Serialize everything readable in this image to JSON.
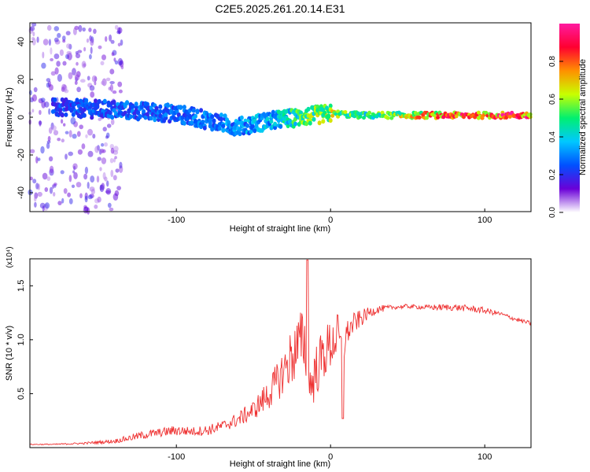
{
  "title": "C2E5.2025.261.20.14.E31",
  "colors": {
    "signal": "#ee3030",
    "colormap": [
      "#ffffff",
      "#6a00d8",
      "#0050ff",
      "#00c8ff",
      "#00f070",
      "#c8ff00",
      "#ff9000",
      "#ff0030",
      "#ff1aa0"
    ]
  },
  "chart_data": [
    {
      "type": "heatmap",
      "xlabel": "Height of straight line (km)",
      "ylabel": "Frequency (Hz)",
      "xlim": [
        -195,
        130
      ],
      "ylim": [
        -50,
        50
      ],
      "xticks": [
        -100,
        0,
        100
      ],
      "xtick_labels": [
        "-100",
        "0",
        "100"
      ],
      "yticks": [
        -40,
        -20,
        0,
        20,
        40
      ],
      "ytick_labels": [
        "-40",
        "-20",
        "0",
        "20",
        "40"
      ],
      "colorbar": {
        "label": "Normalized spectral amplitude",
        "range": [
          0,
          1
        ],
        "ticks": [
          0.0,
          0.2,
          0.4,
          0.6,
          0.8
        ],
        "tick_labels": [
          "0.0",
          "0.2",
          "0.4",
          "0.6",
          "0.8"
        ]
      },
      "band_profile": {
        "x": [
          -180,
          -140,
          -100,
          -60,
          -40,
          -20,
          0,
          20,
          60,
          100,
          130
        ],
        "center_hz": [
          5,
          4,
          2,
          -5,
          -2,
          0,
          2,
          1,
          1,
          1,
          1
        ],
        "amplitude": [
          0.25,
          0.3,
          0.3,
          0.35,
          0.4,
          0.55,
          0.7,
          0.5,
          0.8,
          0.95,
          0.95
        ]
      }
    },
    {
      "type": "line",
      "xlabel": "Height of straight line (km)",
      "ylabel": "SNR (10 * v/v)",
      "y_multiplier": "(x10⁴)",
      "xlim": [
        -195,
        130
      ],
      "ylim": [
        0,
        1.75
      ],
      "xticks": [
        -100,
        0,
        100
      ],
      "xtick_labels": [
        "-100",
        "0",
        "100"
      ],
      "yticks": [
        0.5,
        1.0,
        1.5
      ],
      "ytick_labels": [
        "0.5",
        "1.0",
        "1.5"
      ],
      "series": [
        {
          "name": "SNR",
          "x": [
            -195,
            -180,
            -160,
            -140,
            -130,
            -120,
            -110,
            -100,
            -90,
            -80,
            -70,
            -60,
            -50,
            -45,
            -40,
            -35,
            -30,
            -25,
            -20,
            -17,
            -15,
            -13,
            -10,
            -5,
            0,
            5,
            8,
            10,
            15,
            20,
            25,
            30,
            40,
            50,
            60,
            70,
            80,
            90,
            100,
            110,
            120,
            130
          ],
          "values": [
            0.03,
            0.03,
            0.04,
            0.06,
            0.09,
            0.12,
            0.14,
            0.16,
            0.15,
            0.16,
            0.2,
            0.26,
            0.35,
            0.42,
            0.5,
            0.6,
            0.72,
            0.85,
            0.95,
            1.0,
            0.75,
            0.55,
            0.7,
            0.85,
            0.95,
            1.05,
            0.85,
            1.05,
            1.15,
            1.2,
            1.25,
            1.28,
            1.3,
            1.31,
            1.3,
            1.3,
            1.3,
            1.29,
            1.27,
            1.24,
            1.19,
            1.15
          ],
          "noise": [
            0.005,
            0.005,
            0.01,
            0.02,
            0.03,
            0.04,
            0.04,
            0.05,
            0.04,
            0.05,
            0.05,
            0.07,
            0.09,
            0.12,
            0.15,
            0.18,
            0.22,
            0.28,
            0.32,
            0.3,
            0.3,
            0.25,
            0.25,
            0.25,
            0.25,
            0.2,
            0.15,
            0.12,
            0.1,
            0.08,
            0.05,
            0.04,
            0.02,
            0.02,
            0.02,
            0.03,
            0.03,
            0.03,
            0.03,
            0.02,
            0.02,
            0.02
          ]
        }
      ]
    }
  ]
}
